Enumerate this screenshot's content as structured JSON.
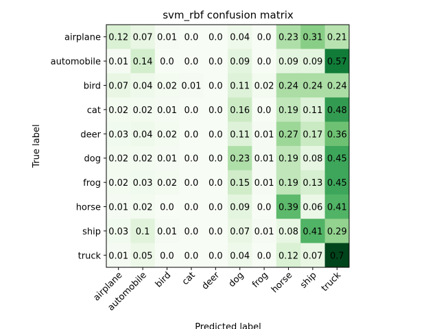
{
  "chart_data": {
    "type": "heatmap",
    "title": "svm_rbf confusion matrix",
    "xlabel": "Predicted label",
    "ylabel": "True label",
    "x_categories": [
      "airplane",
      "automobile",
      "bird",
      "cat",
      "deer",
      "dog",
      "frog",
      "horse",
      "ship",
      "truck"
    ],
    "y_categories": [
      "airplane",
      "automobile",
      "bird",
      "cat",
      "deer",
      "dog",
      "frog",
      "horse",
      "ship",
      "truck"
    ],
    "values": [
      [
        0.12,
        0.07,
        0.01,
        0.0,
        0.0,
        0.04,
        0.0,
        0.23,
        0.31,
        0.21
      ],
      [
        0.01,
        0.14,
        0.0,
        0.0,
        0.0,
        0.09,
        0.0,
        0.09,
        0.09,
        0.57
      ],
      [
        0.07,
        0.04,
        0.02,
        0.01,
        0.0,
        0.11,
        0.02,
        0.24,
        0.24,
        0.24
      ],
      [
        0.02,
        0.02,
        0.01,
        0.0,
        0.0,
        0.16,
        0.0,
        0.19,
        0.11,
        0.48
      ],
      [
        0.03,
        0.04,
        0.02,
        0.0,
        0.0,
        0.11,
        0.01,
        0.27,
        0.17,
        0.36
      ],
      [
        0.02,
        0.02,
        0.01,
        0.0,
        0.0,
        0.23,
        0.01,
        0.19,
        0.08,
        0.45
      ],
      [
        0.02,
        0.03,
        0.02,
        0.0,
        0.0,
        0.15,
        0.01,
        0.19,
        0.13,
        0.45
      ],
      [
        0.01,
        0.02,
        0.0,
        0.0,
        0.0,
        0.09,
        0.0,
        0.39,
        0.06,
        0.41
      ],
      [
        0.03,
        0.1,
        0.01,
        0.0,
        0.0,
        0.07,
        0.01,
        0.08,
        0.41,
        0.29
      ],
      [
        0.01,
        0.05,
        0.0,
        0.0,
        0.0,
        0.04,
        0.0,
        0.12,
        0.07,
        0.7
      ]
    ],
    "value_labels": [
      [
        "0.12",
        "0.07",
        "0.01",
        "0.0",
        "0.0",
        "0.04",
        "0.0",
        "0.23",
        "0.31",
        "0.21"
      ],
      [
        "0.01",
        "0.14",
        "0.0",
        "0.0",
        "0.0",
        "0.09",
        "0.0",
        "0.09",
        "0.09",
        "0.57"
      ],
      [
        "0.07",
        "0.04",
        "0.02",
        "0.01",
        "0.0",
        "0.11",
        "0.02",
        "0.24",
        "0.24",
        "0.24"
      ],
      [
        "0.02",
        "0.02",
        "0.01",
        "0.0",
        "0.0",
        "0.16",
        "0.0",
        "0.19",
        "0.11",
        "0.48"
      ],
      [
        "0.03",
        "0.04",
        "0.02",
        "0.0",
        "0.0",
        "0.11",
        "0.01",
        "0.27",
        "0.17",
        "0.36"
      ],
      [
        "0.02",
        "0.02",
        "0.01",
        "0.0",
        "0.0",
        "0.23",
        "0.01",
        "0.19",
        "0.08",
        "0.45"
      ],
      [
        "0.02",
        "0.03",
        "0.02",
        "0.0",
        "0.0",
        "0.15",
        "0.01",
        "0.19",
        "0.13",
        "0.45"
      ],
      [
        "0.01",
        "0.02",
        "0.0",
        "0.0",
        "0.0",
        "0.09",
        "0.0",
        "0.39",
        "0.06",
        "0.41"
      ],
      [
        "0.03",
        "0.1",
        "0.01",
        "0.0",
        "0.0",
        "0.07",
        "0.01",
        "0.08",
        "0.41",
        "0.29"
      ],
      [
        "0.01",
        "0.05",
        "0.0",
        "0.0",
        "0.0",
        "0.04",
        "0.0",
        "0.12",
        "0.07",
        "0.7"
      ]
    ],
    "colormap": "Greens",
    "vmin": 0.0,
    "vmax": 0.7,
    "text_color": "#000000",
    "colorbar": false,
    "grid": false
  }
}
